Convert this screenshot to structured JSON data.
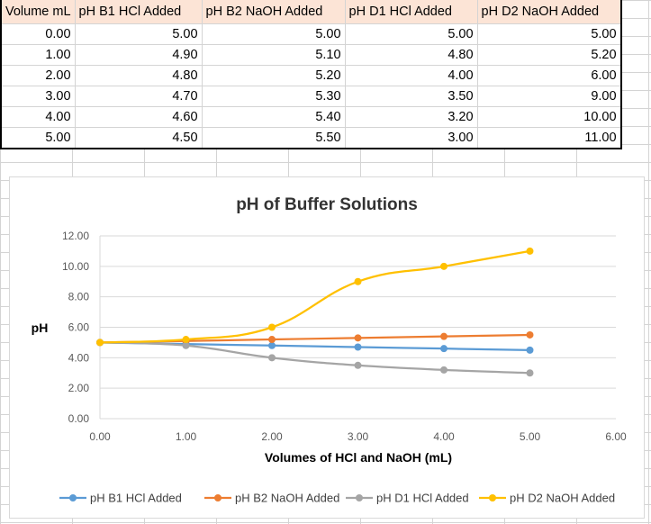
{
  "table": {
    "headers": [
      "Volume mL",
      "pH B1 HCl Added",
      "pH B2 NaOH Added",
      "pH D1 HCl Added",
      "pH D2 NaOH Added"
    ],
    "rows": [
      [
        "0.00",
        "5.00",
        "5.00",
        "5.00",
        "5.00"
      ],
      [
        "1.00",
        "4.90",
        "5.10",
        "4.80",
        "5.20"
      ],
      [
        "2.00",
        "4.80",
        "5.20",
        "4.00",
        "6.00"
      ],
      [
        "3.00",
        "4.70",
        "5.30",
        "3.50",
        "9.00"
      ],
      [
        "4.00",
        "4.60",
        "5.40",
        "3.20",
        "10.00"
      ],
      [
        "5.00",
        "4.50",
        "5.50",
        "3.00",
        "11.00"
      ]
    ]
  },
  "chart_data": {
    "type": "line",
    "title": "pH of Buffer Solutions",
    "xlabel": "Volumes of HCl and NaOH (mL)",
    "ylabel": "pH",
    "xlim": [
      0,
      6
    ],
    "ylim": [
      0,
      12
    ],
    "x_ticks": [
      "0.00",
      "1.00",
      "2.00",
      "3.00",
      "4.00",
      "5.00",
      "6.00"
    ],
    "y_ticks": [
      "0.00",
      "2.00",
      "4.00",
      "6.00",
      "8.00",
      "10.00",
      "12.00"
    ],
    "grid": true,
    "legend_position": "bottom",
    "x": [
      0,
      1,
      2,
      3,
      4,
      5
    ],
    "series": [
      {
        "name": "pH B1 HCl Added",
        "values": [
          5.0,
          4.9,
          4.8,
          4.7,
          4.6,
          4.5
        ],
        "color": "#5b9bd5"
      },
      {
        "name": "pH B2 NaOH Added",
        "values": [
          5.0,
          5.1,
          5.2,
          5.3,
          5.4,
          5.5
        ],
        "color": "#ed7d31"
      },
      {
        "name": "pH D1 HCl Added",
        "values": [
          5.0,
          4.8,
          4.0,
          3.5,
          3.2,
          3.0
        ],
        "color": "#a5a5a5"
      },
      {
        "name": "pH D2 NaOH Added",
        "values": [
          5.0,
          5.2,
          6.0,
          9.0,
          10.0,
          11.0
        ],
        "color": "#ffc000"
      }
    ]
  }
}
